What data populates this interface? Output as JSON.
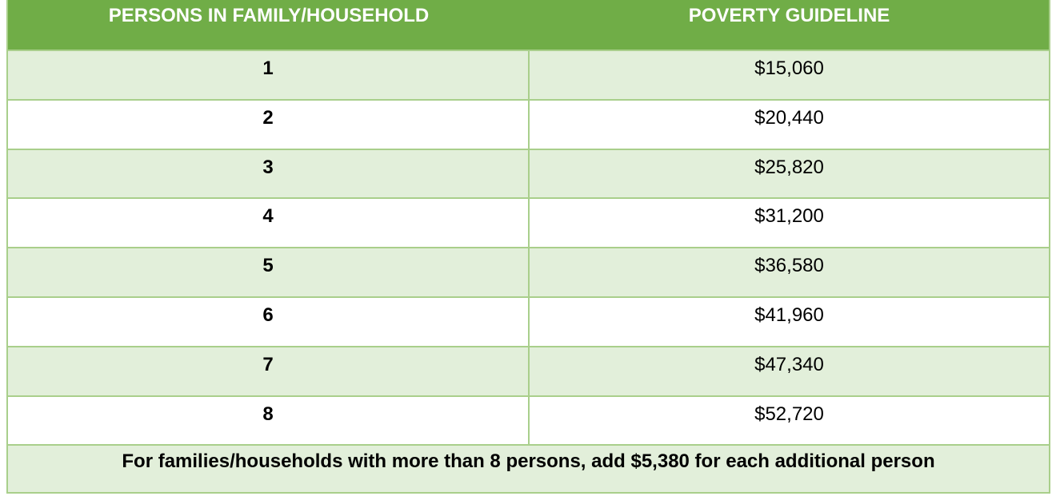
{
  "table": {
    "headers": [
      "PERSONS IN FAMILY/HOUSEHOLD",
      "POVERTY GUIDELINE"
    ],
    "rows": [
      {
        "persons": "1",
        "guideline": "$15,060"
      },
      {
        "persons": "2",
        "guideline": "$20,440"
      },
      {
        "persons": "3",
        "guideline": "$25,820"
      },
      {
        "persons": "4",
        "guideline": "$31,200"
      },
      {
        "persons": "5",
        "guideline": "$36,580"
      },
      {
        "persons": "6",
        "guideline": "$41,960"
      },
      {
        "persons": "7",
        "guideline": "$47,340"
      },
      {
        "persons": "8",
        "guideline": "$52,720"
      }
    ],
    "footer": "For families/households with more than 8 persons, add $5,380 for each additional person"
  },
  "colors": {
    "header_bg": "#70ad47",
    "shaded_row_bg": "#e2efda",
    "border": "#a9cf8b"
  }
}
